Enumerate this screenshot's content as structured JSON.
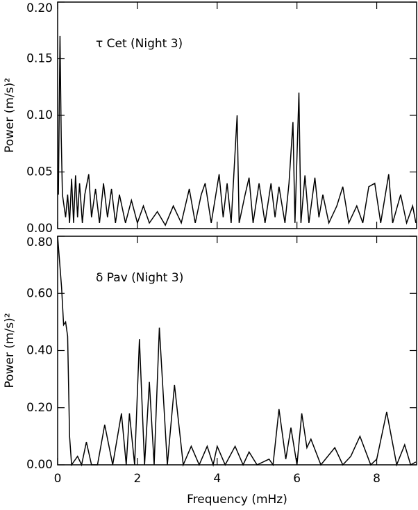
{
  "chart_data": [
    {
      "type": "line",
      "annotation": "τ Cet (Night 3)",
      "ylabel": "Power (m/s)²",
      "color": "#000000",
      "xlim": [
        0,
        9
      ],
      "xticks": [
        0,
        2,
        4,
        6,
        8
      ],
      "ylim": [
        0,
        0.2
      ],
      "yticks": [
        {
          "value": 0,
          "label": "0.00"
        },
        {
          "value": 0.05,
          "label": "0.05"
        },
        {
          "value": 0.1,
          "label": "0.10"
        },
        {
          "value": 0.15,
          "label": "0.15"
        },
        {
          "value": 0.2,
          "label": "0.20"
        }
      ],
      "x": [
        0.02,
        0.06,
        0.09,
        0.12,
        0.2,
        0.25,
        0.3,
        0.35,
        0.4,
        0.45,
        0.5,
        0.55,
        0.62,
        0.68,
        0.78,
        0.85,
        0.95,
        1.05,
        1.15,
        1.25,
        1.35,
        1.45,
        1.55,
        1.7,
        1.85,
        2.0,
        2.15,
        2.3,
        2.5,
        2.7,
        2.9,
        3.1,
        3.3,
        3.45,
        3.6,
        3.7,
        3.85,
        4.05,
        4.15,
        4.25,
        4.35,
        4.5,
        4.55,
        4.7,
        4.8,
        4.9,
        5.05,
        5.2,
        5.35,
        5.45,
        5.55,
        5.7,
        5.8,
        5.9,
        5.95,
        6.05,
        6.1,
        6.2,
        6.3,
        6.45,
        6.55,
        6.65,
        6.8,
        7.0,
        7.15,
        7.3,
        7.5,
        7.65,
        7.8,
        7.95,
        8.1,
        8.3,
        8.4,
        8.6,
        8.75,
        8.9,
        8.98
      ],
      "values": [
        0.03,
        0.17,
        0.08,
        0.03,
        0.01,
        0.03,
        0.005,
        0.044,
        0.005,
        0.047,
        0.01,
        0.04,
        0.005,
        0.03,
        0.048,
        0.01,
        0.035,
        0.005,
        0.04,
        0.01,
        0.035,
        0.005,
        0.03,
        0.005,
        0.025,
        0.005,
        0.02,
        0.005,
        0.015,
        0.003,
        0.02,
        0.005,
        0.035,
        0.005,
        0.03,
        0.04,
        0.005,
        0.048,
        0.01,
        0.04,
        0.005,
        0.1,
        0.005,
        0.03,
        0.045,
        0.005,
        0.04,
        0.005,
        0.04,
        0.01,
        0.037,
        0.005,
        0.04,
        0.094,
        0.005,
        0.12,
        0.005,
        0.047,
        0.005,
        0.045,
        0.01,
        0.03,
        0.005,
        0.02,
        0.037,
        0.005,
        0.02,
        0.005,
        0.037,
        0.04,
        0.005,
        0.048,
        0.005,
        0.03,
        0.005,
        0.02,
        0.005
      ]
    },
    {
      "type": "line",
      "annotation": "δ Pav (Night 3)",
      "ylabel": "Power (m/s)²",
      "xlabel": "Frequency (mHz)",
      "color": "#000000",
      "xlim": [
        0,
        9
      ],
      "xticks": [
        0,
        2,
        4,
        6,
        8
      ],
      "ylim": [
        0,
        0.8
      ],
      "yticks": [
        {
          "value": 0,
          "label": "0.00"
        },
        {
          "value": 0.2,
          "label": "0.20"
        },
        {
          "value": 0.4,
          "label": "0.40"
        },
        {
          "value": 0.6,
          "label": "0.60"
        },
        {
          "value": 0.8,
          "label": "0.80"
        }
      ],
      "x": [
        0,
        0.1,
        0.15,
        0.2,
        0.25,
        0.3,
        0.35,
        0.5,
        0.6,
        0.72,
        0.85,
        1.0,
        1.18,
        1.38,
        1.6,
        1.72,
        1.8,
        1.93,
        2.05,
        2.18,
        2.3,
        2.42,
        2.55,
        2.75,
        2.93,
        3.15,
        3.35,
        3.55,
        3.75,
        3.9,
        4.0,
        4.2,
        4.45,
        4.65,
        4.8,
        5.0,
        5.3,
        5.4,
        5.55,
        5.72,
        5.85,
        6.0,
        6.12,
        6.25,
        6.35,
        6.6,
        6.95,
        7.15,
        7.35,
        7.58,
        7.85,
        8.0,
        8.25,
        8.5,
        8.7,
        8.85,
        8.98
      ],
      "values": [
        0.8,
        0.62,
        0.49,
        0.5,
        0.45,
        0.1,
        0,
        0.03,
        0,
        0.08,
        0,
        0,
        0.14,
        0,
        0.18,
        0,
        0.18,
        0,
        0.44,
        0,
        0.29,
        0,
        0.48,
        0,
        0.28,
        0,
        0.065,
        0,
        0.065,
        0,
        0.065,
        0,
        0.065,
        0,
        0.045,
        0,
        0.02,
        0,
        0.195,
        0.02,
        0.13,
        0,
        0.18,
        0.06,
        0.09,
        0,
        0.06,
        0,
        0.03,
        0.1,
        0,
        0.02,
        0.185,
        0,
        0.07,
        0,
        0.01
      ]
    }
  ]
}
